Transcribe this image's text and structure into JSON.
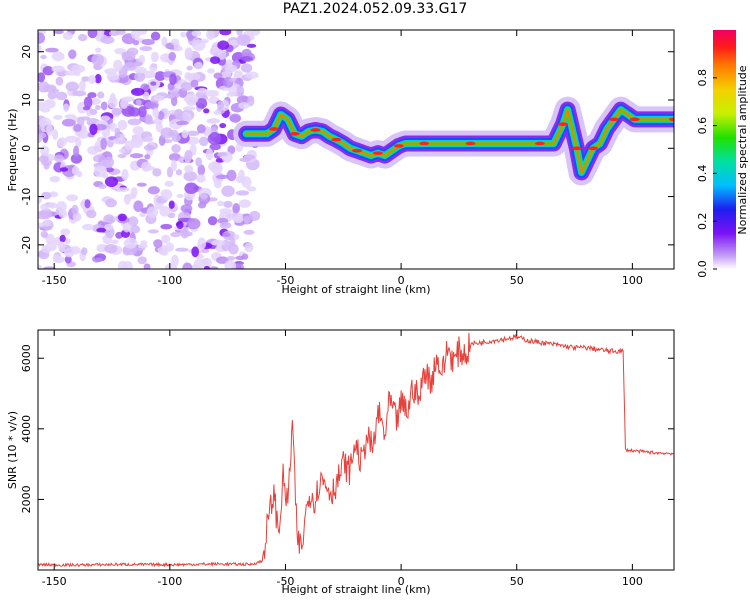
{
  "figure_title": "PAZ1.2024.052.09.33.G17",
  "colors": {
    "spectrum": "#7b12f5",
    "snr_line": "#e8413b"
  },
  "chart_data": [
    {
      "type": "heatmap",
      "title": "",
      "xlabel": "Height of straight line (km)",
      "ylabel": "Frequency (Hz)",
      "xlim": [
        -157,
        118
      ],
      "ylim": [
        -25,
        24.5
      ],
      "xticks": [
        -150,
        -100,
        -50,
        0,
        50,
        100
      ],
      "yticks": [
        -20,
        -10,
        0,
        10,
        20
      ],
      "ridge": {
        "x": [
          -67,
          -62,
          -58,
          -55,
          -52,
          -49,
          -46,
          -43,
          -40,
          -37,
          -34,
          -31,
          -28,
          -25,
          -22,
          -19,
          -16,
          -13,
          -10,
          -7,
          -4,
          -1,
          2,
          5,
          10,
          15,
          20,
          30,
          40,
          50,
          60,
          66,
          68,
          70,
          72,
          74,
          76,
          78,
          80,
          83,
          86,
          89,
          92,
          95,
          98,
          101,
          105,
          110,
          118
        ],
        "y": [
          3,
          3,
          3,
          4,
          7,
          6,
          3,
          2.5,
          3.5,
          3.8,
          3.5,
          2.5,
          1.8,
          1,
          0,
          -0.5,
          -1,
          -1.5,
          -1,
          -1.5,
          -0.5,
          0.5,
          1,
          1,
          1,
          1,
          1,
          1,
          1,
          1,
          1,
          1,
          3,
          5,
          8,
          4,
          0,
          -5,
          -3,
          0,
          1,
          4,
          6,
          8,
          7,
          6,
          6,
          6,
          6
        ]
      },
      "colorbar": {
        "label": "Normalized spectral amplitude",
        "range": [
          0,
          1
        ],
        "ticks": [
          0.0,
          0.2,
          0.4,
          0.6,
          0.8
        ]
      }
    },
    {
      "type": "line",
      "title": "",
      "xlabel": "Height of straight line (km)",
      "ylabel": "SNR (10 * v/v)",
      "xlim": [
        -157,
        118
      ],
      "ylim": [
        0,
        6800
      ],
      "xticks": [
        -150,
        -100,
        -50,
        0,
        50,
        100
      ],
      "yticks": [
        2000,
        4000,
        6000
      ],
      "series": [
        {
          "x": [
            -157,
            -140,
            -120,
            -100,
            -80,
            -65,
            -60,
            -58,
            -55,
            -53,
            -51,
            -49,
            -47,
            -45,
            -43,
            -40,
            -37,
            -35,
            -32,
            -30,
            -27,
            -25,
            -22,
            -20,
            -17,
            -15,
            -12,
            -10,
            -7,
            -5,
            -2,
            0,
            3,
            5,
            8,
            10,
            13,
            15,
            18,
            20,
            23,
            25,
            28,
            30,
            35,
            40,
            45,
            50,
            55,
            60,
            65,
            70,
            75,
            80,
            85,
            90,
            96,
            97,
            98,
            100,
            105,
            110,
            118
          ],
          "y": [
            150,
            140,
            160,
            150,
            170,
            160,
            250,
            1200,
            2200,
            1000,
            2600,
            1800,
            4200,
            900,
            600,
            2200,
            2000,
            2600,
            2400,
            2200,
            2600,
            3000,
            2800,
            3600,
            3000,
            3800,
            3400,
            4500,
            3800,
            4800,
            4200,
            4700,
            4500,
            5200,
            4800,
            5700,
            5300,
            6000,
            5600,
            6300,
            5900,
            6200,
            6100,
            6400,
            6450,
            6500,
            6550,
            6600,
            6500,
            6450,
            6400,
            6350,
            6300,
            6300,
            6250,
            6200,
            6200,
            3400,
            3400,
            3380,
            3350,
            3320,
            3300
          ]
        }
      ]
    }
  ]
}
